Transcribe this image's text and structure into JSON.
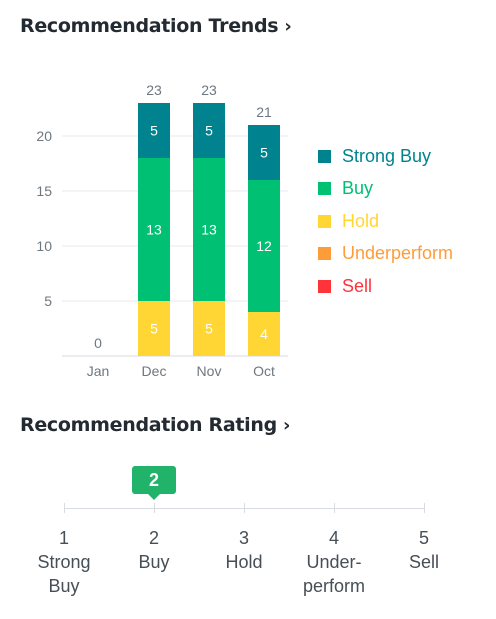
{
  "trends": {
    "title": "Recommendation Trends",
    "chevron": "›"
  },
  "rating": {
    "title": "Recommendation Rating",
    "chevron": "›",
    "value": 2,
    "value_label": "2",
    "accent": "#21b36a",
    "stops": [
      {
        "num": "1",
        "name": "Strong\nBuy"
      },
      {
        "num": "2",
        "name": "Buy"
      },
      {
        "num": "3",
        "name": "Hold"
      },
      {
        "num": "4",
        "name": "Under-\nperform"
      },
      {
        "num": "5",
        "name": "Sell"
      }
    ]
  },
  "chart_data": {
    "type": "bar",
    "stacked": true,
    "categories": [
      "Jan",
      "Dec",
      "Nov",
      "Oct"
    ],
    "ylim": [
      0,
      23
    ],
    "yticks": [
      5,
      10,
      15,
      20
    ],
    "grid": true,
    "legend_position": "right",
    "totals": [
      0,
      23,
      23,
      21
    ],
    "series": [
      {
        "name": "Sell",
        "color": "#ff333a",
        "values": [
          0,
          0,
          0,
          0
        ]
      },
      {
        "name": "Underperform",
        "color": "#ff9c3a",
        "values": [
          0,
          0,
          0,
          0
        ]
      },
      {
        "name": "Hold",
        "color": "#ffd633",
        "values": [
          0,
          5,
          5,
          4
        ]
      },
      {
        "name": "Buy",
        "color": "#00c073",
        "values": [
          0,
          13,
          13,
          12
        ]
      },
      {
        "name": "Strong Buy",
        "color": "#00838f",
        "values": [
          0,
          5,
          5,
          5
        ]
      }
    ],
    "legend_order": [
      "Strong Buy",
      "Buy",
      "Hold",
      "Underperform",
      "Sell"
    ]
  }
}
